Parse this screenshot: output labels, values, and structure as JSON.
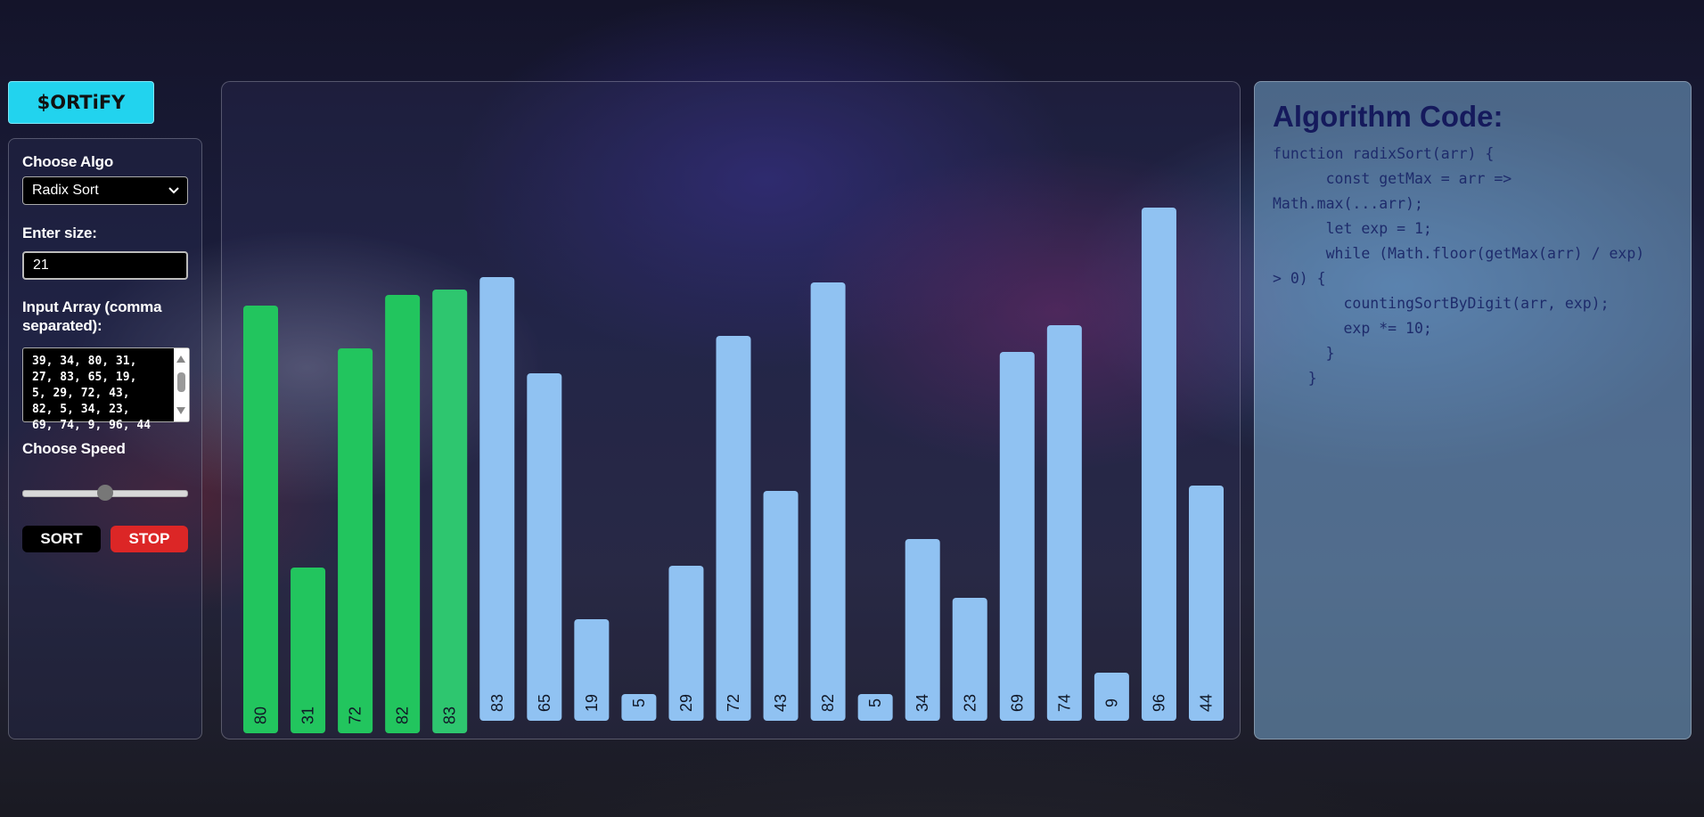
{
  "app": {
    "logo": "$ORTiFY"
  },
  "controls": {
    "algo_label": "Choose Algo",
    "algo_selected": "Radix Sort",
    "size_label": "Enter size:",
    "size_value": "21",
    "array_label": "Input Array (comma separated):",
    "array_value": "39, 34, 80, 31,\n27, 83, 65, 19,\n5, 29, 72, 43,\n82, 5, 34, 23,\n69, 74, 9, 96, 44",
    "speed_label": "Choose Speed",
    "speed_value": 0.5,
    "sort_label": "SORT",
    "stop_label": "STOP"
  },
  "chart_data": {
    "type": "bar",
    "categories": [
      "80",
      "31",
      "72",
      "82",
      "83",
      "83",
      "65",
      "19",
      "5",
      "29",
      "72",
      "43",
      "82",
      "5",
      "34",
      "23",
      "69",
      "74",
      "9",
      "96",
      "44"
    ],
    "values": [
      80,
      31,
      72,
      82,
      83,
      83,
      65,
      19,
      5,
      29,
      72,
      43,
      82,
      5,
      34,
      23,
      69,
      74,
      9,
      96,
      44
    ],
    "highlighted": [
      0,
      1,
      2,
      3,
      4
    ],
    "colors": {
      "sorted": "#22c55e",
      "active": "#2ec66f",
      "default": "#90c2f2",
      "label": "#111827"
    }
  },
  "code_panel": {
    "title": "Algorithm Code:",
    "code": "function radixSort(arr) {\n      const getMax = arr =>\nMath.max(...arr);\n      let exp = 1;\n      while (Math.floor(getMax(arr) / exp)\n> 0) {\n        countingSortByDigit(arr, exp);\n        exp *= 10;\n      }\n    }"
  }
}
